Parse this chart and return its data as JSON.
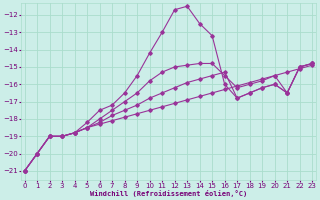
{
  "background_color": "#cceee8",
  "grid_color": "#aaddcc",
  "line_color": "#993399",
  "xlabel": "Windchill (Refroidissement éolien,°C)",
  "xlim": [
    -0.3,
    23.3
  ],
  "ylim": [
    -21.5,
    -11.3
  ],
  "x_ticks": [
    0,
    1,
    2,
    3,
    4,
    5,
    6,
    7,
    8,
    9,
    10,
    11,
    12,
    13,
    14,
    15,
    16,
    17,
    18,
    19,
    20,
    21,
    22,
    23
  ],
  "y_ticks": [
    -21,
    -20,
    -19,
    -18,
    -17,
    -16,
    -15,
    -14,
    -13,
    -12
  ],
  "lines": [
    {
      "x": [
        0,
        1,
        2,
        3,
        4,
        5,
        6,
        7,
        8,
        9,
        10,
        11,
        12,
        13,
        14,
        15,
        16,
        17,
        18,
        19,
        20,
        21,
        22,
        23
      ],
      "y": [
        -21,
        -20,
        -19,
        -19,
        -18.8,
        -18.5,
        -18.3,
        -18.1,
        -17.9,
        -17.7,
        -17.5,
        -17.3,
        -17.1,
        -16.9,
        -16.7,
        -16.5,
        -16.3,
        -16.1,
        -15.9,
        -15.7,
        -15.5,
        -15.3,
        -15.1,
        -14.9
      ]
    },
    {
      "x": [
        0,
        1,
        2,
        3,
        4,
        5,
        6,
        7,
        8,
        9,
        10,
        11,
        12,
        13,
        14,
        15,
        16,
        17,
        18,
        19,
        20,
        21,
        22,
        23
      ],
      "y": [
        -21,
        -20,
        -19,
        -19,
        -18.8,
        -18.5,
        -18.2,
        -17.8,
        -17.5,
        -17.2,
        -16.8,
        -16.5,
        -16.2,
        -15.9,
        -15.7,
        -15.5,
        -15.3,
        -16.8,
        -16.5,
        -16.2,
        -16.0,
        -16.5,
        -15.0,
        -14.8
      ]
    },
    {
      "x": [
        0,
        1,
        2,
        3,
        4,
        5,
        6,
        7,
        8,
        9,
        10,
        11,
        12,
        13,
        14,
        15,
        16,
        17,
        18,
        19,
        20,
        21,
        22,
        23
      ],
      "y": [
        -21,
        -20,
        -19,
        -19,
        -18.8,
        -18.5,
        -18.0,
        -17.5,
        -17.0,
        -16.5,
        -15.8,
        -15.3,
        -15.0,
        -14.9,
        -14.8,
        -14.8,
        -15.5,
        -16.2,
        -16.0,
        -15.8,
        -15.5,
        -16.5,
        -15.0,
        -14.8
      ]
    },
    {
      "x": [
        0,
        1,
        2,
        3,
        4,
        5,
        6,
        7,
        8,
        9,
        10,
        11,
        12,
        13,
        14,
        15,
        16,
        17,
        18,
        19,
        20,
        21,
        22,
        23
      ],
      "y": [
        -21,
        -20,
        -19,
        -19,
        -18.8,
        -18.2,
        -17.5,
        -17.2,
        -16.5,
        -15.5,
        -14.2,
        -13.0,
        -11.7,
        -11.5,
        -12.5,
        -13.2,
        -16.0,
        -16.8,
        -16.5,
        -16.2,
        -16.0,
        -16.5,
        -15.0,
        -14.8
      ]
    }
  ]
}
